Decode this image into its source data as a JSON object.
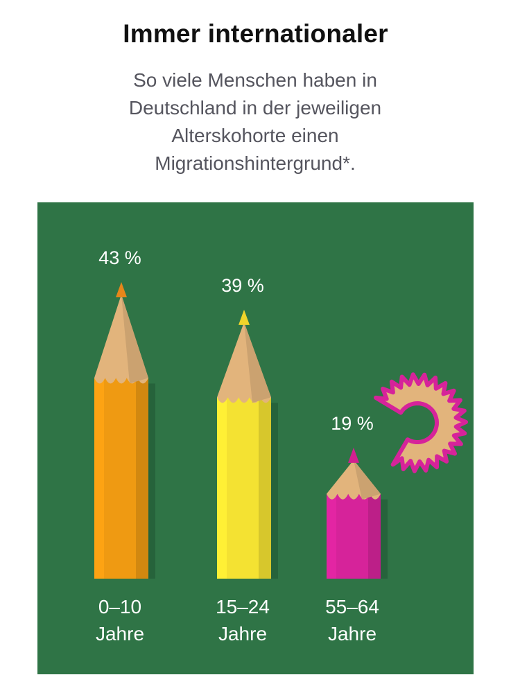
{
  "title": "Immer internationaler",
  "subtitle": "So viele Menschen haben in Deutschland in der jeweiligen Alterskohorte einen Migrationshintergrund*.",
  "chart_data": {
    "type": "bar",
    "categories": [
      {
        "line1": "0–10",
        "line2": "Jahre"
      },
      {
        "line1": "15–24",
        "line2": "Jahre"
      },
      {
        "line1": "55–64",
        "line2": "Jahre"
      }
    ],
    "values": [
      43,
      39,
      19
    ],
    "value_labels": [
      "43 %",
      "39 %",
      "19 %"
    ],
    "unit": "%",
    "colors": {
      "background": "#2f7446",
      "bars": [
        "#ef9a12",
        "#f4e232",
        "#d6239a"
      ],
      "tips": [
        "#e7861a",
        "#efd42a",
        "#d21f8f"
      ],
      "wood": "#e2b47c",
      "shaving_edge": "#d6239a"
    }
  }
}
